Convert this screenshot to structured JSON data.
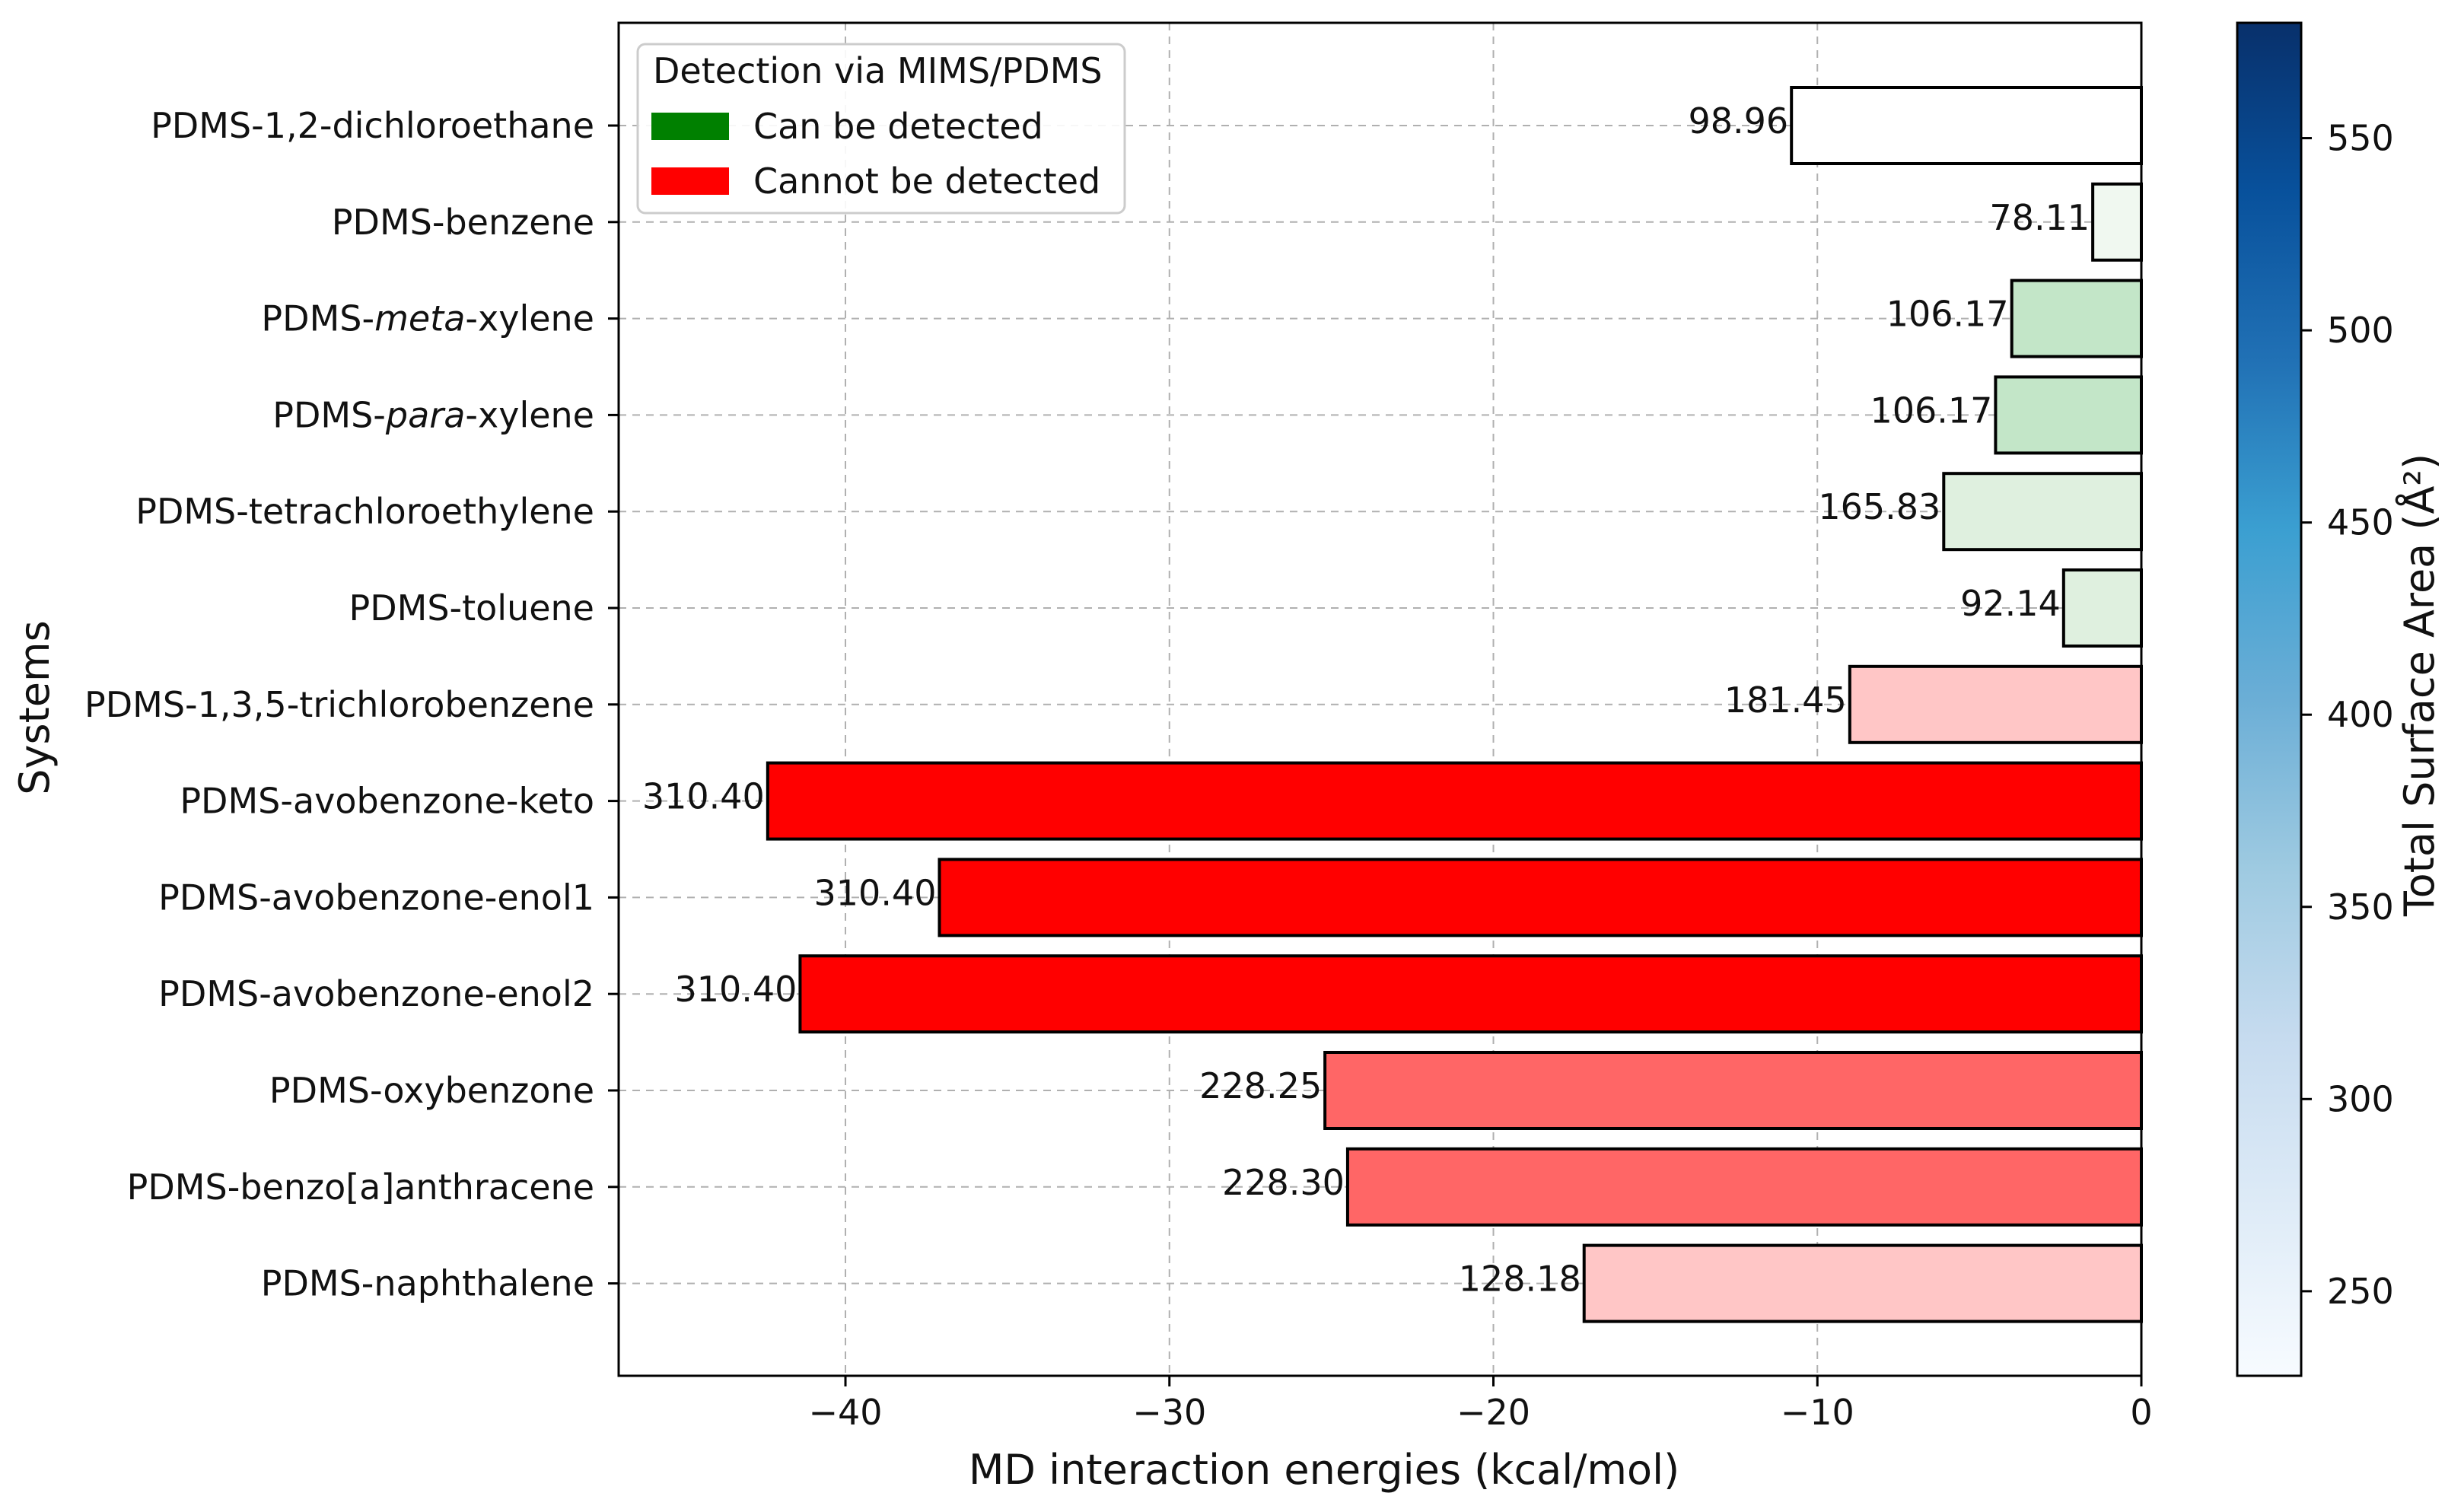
{
  "chart_data": {
    "type": "bar",
    "orientation": "horizontal",
    "title": "",
    "xlabel": "MD interaction energies (kcal/mol)",
    "ylabel": "Systems",
    "xlim": [
      -47,
      0
    ],
    "xticks": [
      -40,
      -30,
      -20,
      -10,
      0
    ],
    "xtick_labels": [
      "−40",
      "−30",
      "−20",
      "−10",
      "0"
    ],
    "grid": true,
    "categories": [
      {
        "pre": "PDMS-1,2-dichloroethane",
        "it": "",
        "post": ""
      },
      {
        "pre": "PDMS-benzene",
        "it": "",
        "post": ""
      },
      {
        "pre": "PDMS-",
        "it": "meta",
        "post": "-xylene"
      },
      {
        "pre": "PDMS-",
        "it": "para",
        "post": "-xylene"
      },
      {
        "pre": "PDMS-tetrachloroethylene",
        "it": "",
        "post": ""
      },
      {
        "pre": "PDMS-toluene",
        "it": "",
        "post": ""
      },
      {
        "pre": "PDMS-1,3,5-trichlorobenzene",
        "it": "",
        "post": ""
      },
      {
        "pre": "PDMS-avobenzone-keto",
        "it": "",
        "post": ""
      },
      {
        "pre": "PDMS-avobenzone-enol1",
        "it": "",
        "post": ""
      },
      {
        "pre": "PDMS-avobenzone-enol2",
        "it": "",
        "post": ""
      },
      {
        "pre": "PDMS-oxybenzone",
        "it": "",
        "post": ""
      },
      {
        "pre": "PDMS-benzo[a]anthracene",
        "it": "",
        "post": ""
      },
      {
        "pre": "PDMS-naphthalene",
        "it": "",
        "post": ""
      }
    ],
    "values": [
      -10.8,
      -1.5,
      -4.0,
      -4.5,
      -6.1,
      -2.4,
      -9.0,
      -42.4,
      -37.1,
      -41.4,
      -25.2,
      -24.5,
      -17.2
    ],
    "bar_labels": [
      "98.96",
      "78.11",
      "106.17",
      "106.17",
      "165.83",
      "92.14",
      "181.45",
      "310.40",
      "310.40",
      "310.40",
      "228.25",
      "228.30",
      "128.18"
    ],
    "detected": [
      true,
      true,
      true,
      true,
      true,
      true,
      false,
      false,
      false,
      false,
      false,
      false,
      false
    ],
    "total_surface_area": [
      98.96,
      78.11,
      106.17,
      106.17,
      165.83,
      92.14,
      181.45,
      310.4,
      310.4,
      310.4,
      228.25,
      228.3,
      128.18
    ],
    "bar_colors": [
      "#ffffff",
      "#f0f8f0",
      "#c3e6c8",
      "#c3e6c8",
      "#dff0df",
      "#dff0df",
      "#ffc6c6",
      "#ff0000",
      "#ff0000",
      "#ff0000",
      "#ff6666",
      "#ff6666",
      "#ffc6c6"
    ],
    "legend": {
      "title": "Detection via MIMS/PDMS",
      "position": "top-left",
      "entries": [
        {
          "label": "Can be detected",
          "color": "#008000"
        },
        {
          "label": "Cannot be detected",
          "color": "#ff0000"
        }
      ]
    },
    "colorbar": {
      "label": "Total Surface Area (Å²)",
      "range": [
        228,
        580
      ],
      "ticks": [
        250,
        300,
        350,
        400,
        450,
        500,
        550
      ],
      "colormap": "Blues",
      "colormap_stops": [
        "#f7fbff",
        "#deebf7",
        "#c6dbef",
        "#9ecae1",
        "#6baed6",
        "#3b9fd1",
        "#2171b5",
        "#08519c",
        "#08306b"
      ]
    }
  }
}
